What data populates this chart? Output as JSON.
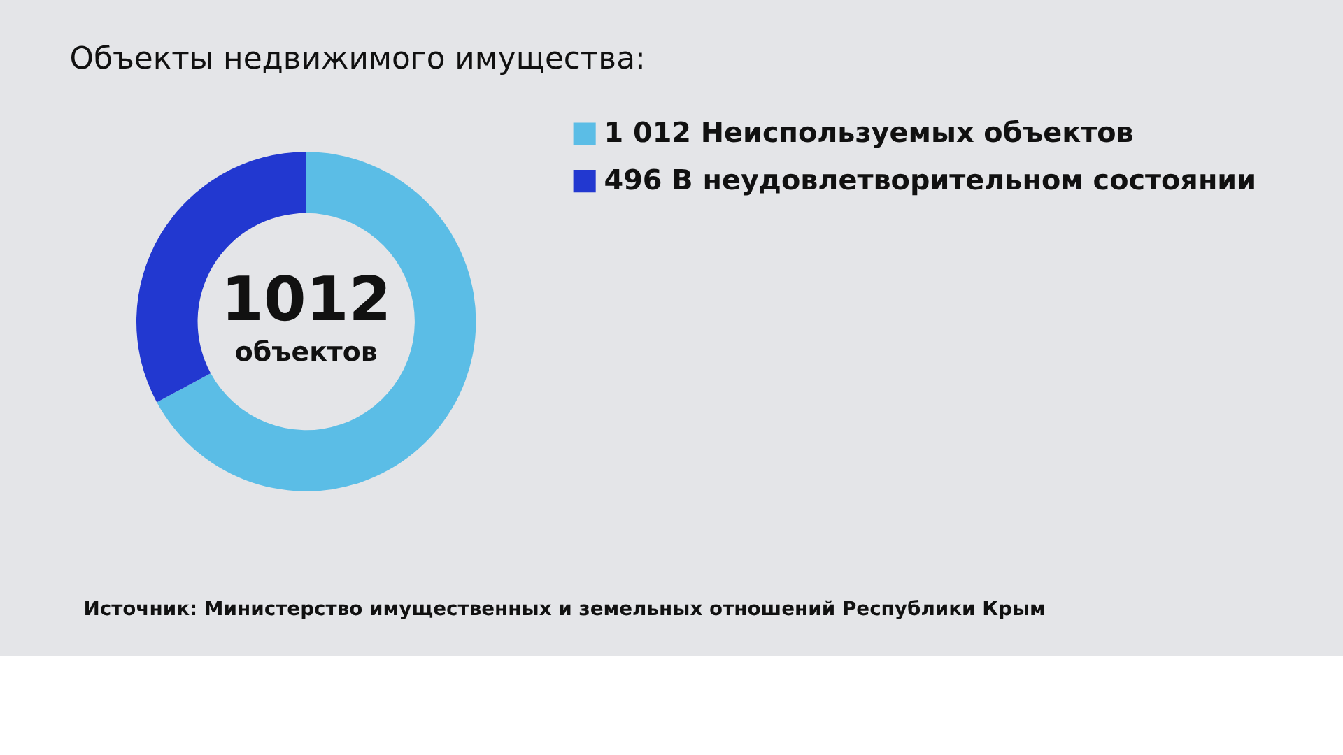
{
  "chart_data": {
    "type": "donut",
    "title": "Объекты недвижимого имущества:",
    "categories": [
      "Неиспользуемых объектов",
      "В неудовлетворительном состоянии"
    ],
    "values": [
      1012,
      496
    ],
    "colors": [
      "#5bbde6",
      "#2238d0"
    ],
    "value_labels": [
      "1 012",
      "496"
    ],
    "legend": "right",
    "annotations": [
      "1012 объектов",
      "Источник: Министерство имущественных и земельных отношений Республики Крым"
    ]
  }
}
